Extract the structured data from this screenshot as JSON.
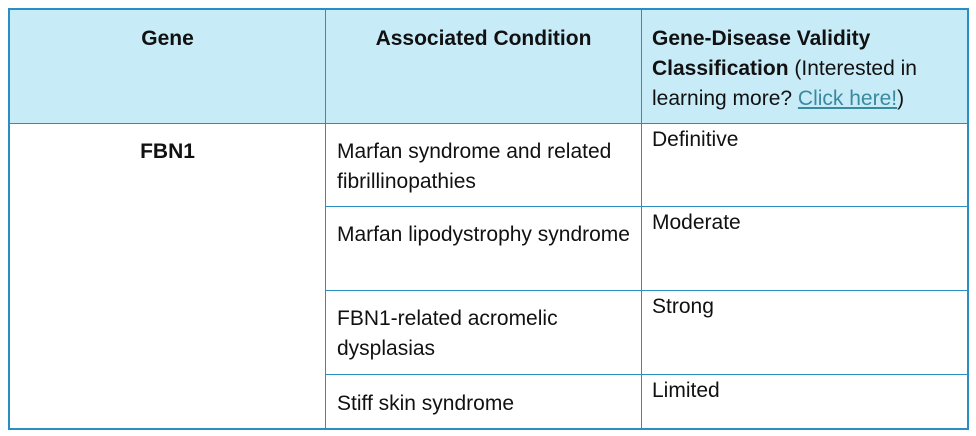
{
  "header": {
    "gene": "Gene",
    "condition": "Associated Condition",
    "classification_bold": "Gene-Disease Validity Classification",
    "classification_note_pre": " (Interested in learning more? ",
    "classification_link": "Click here!",
    "classification_note_post": ")"
  },
  "gene": "FBN1",
  "rows": [
    {
      "condition": "Marfan syndrome and related fibrillinopathies",
      "classification": "Definitive"
    },
    {
      "condition": "Marfan lipodystrophy syndrome",
      "classification": "Moderate"
    },
    {
      "condition": "FBN1-related acromelic dysplasias",
      "classification": "Strong"
    },
    {
      "condition": "Stiff skin syndrome",
      "classification": "Limited"
    }
  ],
  "colors": {
    "header_bg": "#c8ebf8",
    "border": "#2a8fc0",
    "link": "#3a8a9e"
  }
}
